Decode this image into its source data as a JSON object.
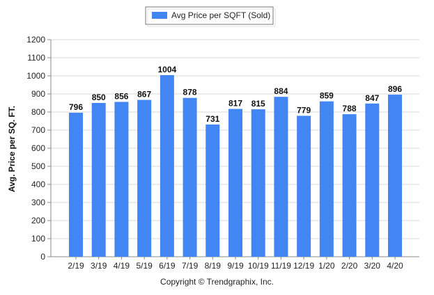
{
  "chart_data": {
    "type": "bar",
    "categories": [
      "2/19",
      "3/19",
      "4/19",
      "5/19",
      "6/19",
      "7/19",
      "8/19",
      "9/19",
      "10/19",
      "11/19",
      "12/19",
      "1/20",
      "2/20",
      "3/20",
      "4/20"
    ],
    "series": [
      {
        "name": "Avg Price per SQFT (Sold)",
        "values": [
          796,
          850,
          856,
          867,
          1004,
          878,
          731,
          817,
          815,
          884,
          779,
          859,
          788,
          847,
          896
        ]
      }
    ],
    "ylabel": "Avg. Price per SQ. FT.",
    "xlabel": "",
    "ylim": [
      0,
      1200
    ],
    "yticks": [
      0,
      100,
      200,
      300,
      400,
      500,
      600,
      700,
      800,
      900,
      1000,
      1100,
      1200
    ],
    "grid": true,
    "legend_position": "top-center",
    "bar_color": "#4286f4"
  },
  "footer": {
    "copyright": "Copyright © Trendgraphix, Inc."
  }
}
